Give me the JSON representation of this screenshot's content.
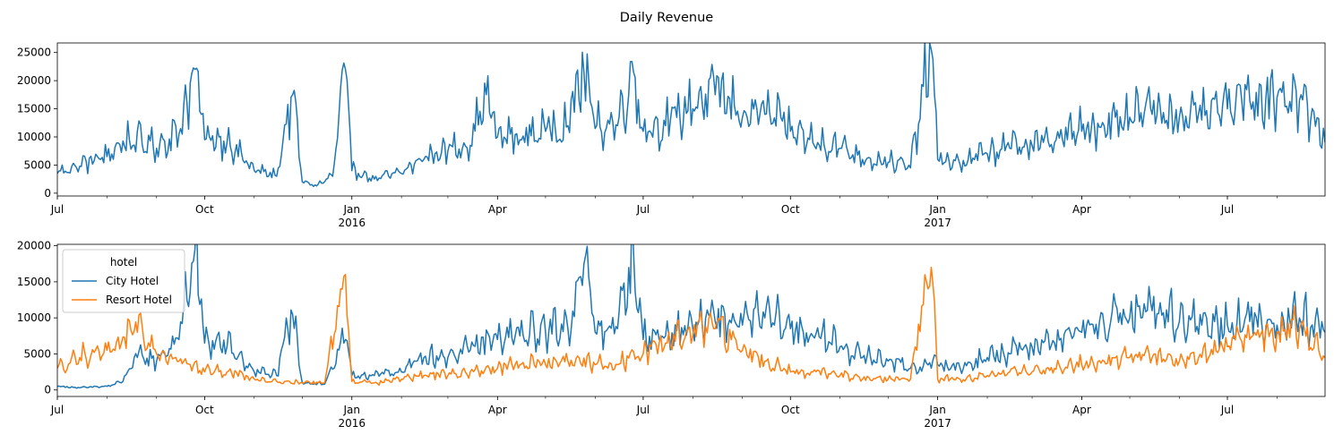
{
  "figure": {
    "suptitle": "Daily Revenue"
  },
  "colors": {
    "series_blue": "#1f77b4",
    "series_orange": "#ff7f0e"
  },
  "chart_data": [
    {
      "type": "line",
      "x_range": [
        "2015-07-01",
        "2017-08-31"
      ],
      "ylim": [
        -500,
        26700
      ],
      "y_ticks": [
        0,
        5000,
        10000,
        15000,
        20000,
        25000
      ],
      "x_ticks": [
        {
          "date": "2015-07-01",
          "label": "Jul",
          "year": ""
        },
        {
          "date": "2015-10-01",
          "label": "Oct",
          "year": ""
        },
        {
          "date": "2016-01-01",
          "label": "Jan",
          "year": "2016"
        },
        {
          "date": "2016-04-01",
          "label": "Apr",
          "year": ""
        },
        {
          "date": "2016-07-01",
          "label": "Jul",
          "year": ""
        },
        {
          "date": "2016-10-01",
          "label": "Oct",
          "year": ""
        },
        {
          "date": "2017-01-01",
          "label": "Jan",
          "year": "2017"
        },
        {
          "date": "2017-04-01",
          "label": "Apr",
          "year": ""
        },
        {
          "date": "2017-07-01",
          "label": "Jul",
          "year": ""
        }
      ],
      "grid": false,
      "legend": null,
      "series": [
        {
          "name": "",
          "color": "#1f77b4",
          "points": [
            [
              "2015-07-01",
              3500
            ],
            [
              "2015-07-15",
              4800
            ],
            [
              "2015-08-01",
              6500
            ],
            [
              "2015-08-15",
              9500
            ],
            [
              "2015-09-01",
              8000
            ],
            [
              "2015-09-15",
              10500
            ],
            [
              "2015-09-25",
              22000
            ],
            [
              "2015-10-01",
              9500
            ],
            [
              "2015-10-15",
              9000
            ],
            [
              "2015-11-01",
              4000
            ],
            [
              "2015-11-15",
              3000
            ],
            [
              "2015-11-25",
              17500
            ],
            [
              "2015-12-01",
              2000
            ],
            [
              "2015-12-10",
              1300
            ],
            [
              "2015-12-20",
              3000
            ],
            [
              "2015-12-28",
              22000
            ],
            [
              "2016-01-01",
              4000
            ],
            [
              "2016-01-15",
              2500
            ],
            [
              "2016-02-01",
              3500
            ],
            [
              "2016-02-15",
              6000
            ],
            [
              "2016-03-01",
              7500
            ],
            [
              "2016-03-15",
              8500
            ],
            [
              "2016-03-25",
              17500
            ],
            [
              "2016-04-01",
              10000
            ],
            [
              "2016-04-15",
              9500
            ],
            [
              "2016-05-01",
              11000
            ],
            [
              "2016-05-15",
              12000
            ],
            [
              "2016-05-25",
              21500
            ],
            [
              "2016-06-01",
              11500
            ],
            [
              "2016-06-15",
              12000
            ],
            [
              "2016-06-25",
              21500
            ],
            [
              "2016-07-01",
              11000
            ],
            [
              "2016-07-15",
              12000
            ],
            [
              "2016-08-01",
              15000
            ],
            [
              "2016-08-15",
              17500
            ],
            [
              "2016-09-01",
              13500
            ],
            [
              "2016-09-15",
              14000
            ],
            [
              "2016-10-01",
              11000
            ],
            [
              "2016-10-15",
              9000
            ],
            [
              "2016-11-01",
              8000
            ],
            [
              "2016-11-15",
              6000
            ],
            [
              "2016-12-01",
              5500
            ],
            [
              "2016-12-15",
              4500
            ],
            [
              "2016-12-28",
              25500
            ],
            [
              "2017-01-01",
              6000
            ],
            [
              "2017-01-15",
              5000
            ],
            [
              "2017-02-01",
              7000
            ],
            [
              "2017-02-15",
              8000
            ],
            [
              "2017-03-01",
              8500
            ],
            [
              "2017-03-15",
              9000
            ],
            [
              "2017-04-01",
              11000
            ],
            [
              "2017-04-15",
              12000
            ],
            [
              "2017-05-01",
              13500
            ],
            [
              "2017-05-15",
              14000
            ],
            [
              "2017-06-01",
              13500
            ],
            [
              "2017-06-15",
              13000
            ],
            [
              "2017-07-01",
              15000
            ],
            [
              "2017-07-15",
              16500
            ],
            [
              "2017-08-01",
              17000
            ],
            [
              "2017-08-15",
              16500
            ],
            [
              "2017-08-31",
              9000
            ]
          ]
        }
      ]
    },
    {
      "type": "line",
      "x_range": [
        "2015-07-01",
        "2017-08-31"
      ],
      "ylim": [
        -900,
        20200
      ],
      "y_ticks": [
        0,
        5000,
        10000,
        15000,
        20000
      ],
      "x_ticks": [
        {
          "date": "2015-07-01",
          "label": "Jul",
          "year": ""
        },
        {
          "date": "2015-10-01",
          "label": "Oct",
          "year": ""
        },
        {
          "date": "2016-01-01",
          "label": "Jan",
          "year": "2016"
        },
        {
          "date": "2016-04-01",
          "label": "Apr",
          "year": ""
        },
        {
          "date": "2016-07-01",
          "label": "Jul",
          "year": ""
        },
        {
          "date": "2016-10-01",
          "label": "Oct",
          "year": ""
        },
        {
          "date": "2017-01-01",
          "label": "Jan",
          "year": "2017"
        },
        {
          "date": "2017-04-01",
          "label": "Apr",
          "year": ""
        },
        {
          "date": "2017-07-01",
          "label": "Jul",
          "year": ""
        }
      ],
      "grid": false,
      "legend": {
        "title": "hotel",
        "placement": "upper-left",
        "entries": [
          "City Hotel",
          "Resort Hotel"
        ]
      },
      "series": [
        {
          "name": "City Hotel",
          "color": "#1f77b4",
          "points": [
            [
              "2015-07-01",
              500
            ],
            [
              "2015-07-15",
              300
            ],
            [
              "2015-08-01",
              500
            ],
            [
              "2015-08-10",
              1000
            ],
            [
              "2015-08-20",
              4500
            ],
            [
              "2015-09-01",
              4000
            ],
            [
              "2015-09-15",
              7000
            ],
            [
              "2015-09-25",
              19500
            ],
            [
              "2015-10-01",
              6500
            ],
            [
              "2015-10-15",
              6000
            ],
            [
              "2015-11-01",
              2500
            ],
            [
              "2015-11-15",
              2000
            ],
            [
              "2015-11-25",
              10500
            ],
            [
              "2015-12-01",
              1000
            ],
            [
              "2015-12-15",
              800
            ],
            [
              "2015-12-28",
              7000
            ],
            [
              "2016-01-01",
              2000
            ],
            [
              "2016-01-15",
              2000
            ],
            [
              "2016-02-01",
              2500
            ],
            [
              "2016-02-15",
              4500
            ],
            [
              "2016-03-01",
              4500
            ],
            [
              "2016-03-15",
              5500
            ],
            [
              "2016-04-01",
              7000
            ],
            [
              "2016-04-15",
              7500
            ],
            [
              "2016-05-01",
              8000
            ],
            [
              "2016-05-15",
              8500
            ],
            [
              "2016-05-25",
              17500
            ],
            [
              "2016-06-01",
              8000
            ],
            [
              "2016-06-15",
              8500
            ],
            [
              "2016-06-25",
              19000
            ],
            [
              "2016-07-01",
              7000
            ],
            [
              "2016-07-15",
              7500
            ],
            [
              "2016-08-01",
              8500
            ],
            [
              "2016-08-15",
              9500
            ],
            [
              "2016-09-01",
              9000
            ],
            [
              "2016-09-15",
              10000
            ],
            [
              "2016-10-01",
              8500
            ],
            [
              "2016-10-15",
              7500
            ],
            [
              "2016-11-01",
              6000
            ],
            [
              "2016-11-15",
              4500
            ],
            [
              "2016-12-01",
              4000
            ],
            [
              "2016-12-15",
              3000
            ],
            [
              "2017-01-01",
              3500
            ],
            [
              "2017-01-15",
              3000
            ],
            [
              "2017-02-01",
              4500
            ],
            [
              "2017-02-15",
              5000
            ],
            [
              "2017-03-01",
              6000
            ],
            [
              "2017-03-15",
              6500
            ],
            [
              "2017-04-01",
              8000
            ],
            [
              "2017-04-15",
              9000
            ],
            [
              "2017-05-01",
              10000
            ],
            [
              "2017-05-15",
              11000
            ],
            [
              "2017-06-01",
              9500
            ],
            [
              "2017-06-15",
              9000
            ],
            [
              "2017-07-01",
              9000
            ],
            [
              "2017-07-15",
              9500
            ],
            [
              "2017-08-01",
              9000
            ],
            [
              "2017-08-15",
              10000
            ],
            [
              "2017-08-31",
              8000
            ]
          ]
        },
        {
          "name": "Resort Hotel",
          "color": "#ff7f0e",
          "points": [
            [
              "2015-07-01",
              3000
            ],
            [
              "2015-07-15",
              4500
            ],
            [
              "2015-08-01",
              5500
            ],
            [
              "2015-08-10",
              6500
            ],
            [
              "2015-08-20",
              8000
            ],
            [
              "2015-09-01",
              5000
            ],
            [
              "2015-09-15",
              4000
            ],
            [
              "2015-10-01",
              2500
            ],
            [
              "2015-10-15",
              2500
            ],
            [
              "2015-11-01",
              1500
            ],
            [
              "2015-11-15",
              1200
            ],
            [
              "2015-12-01",
              1000
            ],
            [
              "2015-12-15",
              1000
            ],
            [
              "2015-12-28",
              16000
            ],
            [
              "2016-01-01",
              1200
            ],
            [
              "2016-01-15",
              1000
            ],
            [
              "2016-02-01",
              1500
            ],
            [
              "2016-02-15",
              2000
            ],
            [
              "2016-03-01",
              2000
            ],
            [
              "2016-03-15",
              2500
            ],
            [
              "2016-04-01",
              3000
            ],
            [
              "2016-04-15",
              3500
            ],
            [
              "2016-05-01",
              3500
            ],
            [
              "2016-05-15",
              4000
            ],
            [
              "2016-06-01",
              3500
            ],
            [
              "2016-06-15",
              3500
            ],
            [
              "2016-07-01",
              5000
            ],
            [
              "2016-07-15",
              6500
            ],
            [
              "2016-08-01",
              7500
            ],
            [
              "2016-08-15",
              8500
            ],
            [
              "2016-09-01",
              5500
            ],
            [
              "2016-09-15",
              4000
            ],
            [
              "2016-10-01",
              2500
            ],
            [
              "2016-10-15",
              2500
            ],
            [
              "2016-11-01",
              2000
            ],
            [
              "2016-11-15",
              1500
            ],
            [
              "2016-12-01",
              1500
            ],
            [
              "2016-12-15",
              1500
            ],
            [
              "2016-12-28",
              17000
            ],
            [
              "2017-01-01",
              1500
            ],
            [
              "2017-01-15",
              1500
            ],
            [
              "2017-02-01",
              2000
            ],
            [
              "2017-02-15",
              2500
            ],
            [
              "2017-03-01",
              2500
            ],
            [
              "2017-03-15",
              3000
            ],
            [
              "2017-04-01",
              3500
            ],
            [
              "2017-04-15",
              4000
            ],
            [
              "2017-05-01",
              4500
            ],
            [
              "2017-05-15",
              4500
            ],
            [
              "2017-06-01",
              4000
            ],
            [
              "2017-06-15",
              4500
            ],
            [
              "2017-07-01",
              6000
            ],
            [
              "2017-07-15",
              7000
            ],
            [
              "2017-08-01",
              8000
            ],
            [
              "2017-08-15",
              8500
            ],
            [
              "2017-08-31",
              4500
            ]
          ]
        }
      ]
    }
  ]
}
